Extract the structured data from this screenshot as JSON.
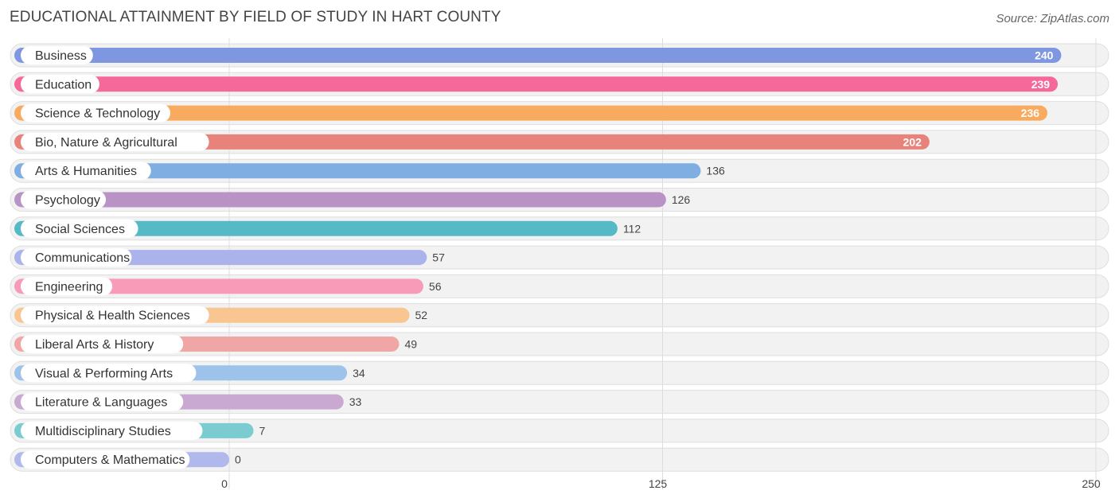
{
  "chart_data": {
    "type": "bar",
    "orientation": "horizontal",
    "title": "EDUCATIONAL ATTAINMENT BY FIELD OF STUDY IN HART COUNTY",
    "source": "Source: ZipAtlas.com",
    "categories": [
      "Business",
      "Education",
      "Science & Technology",
      "Bio, Nature & Agricultural",
      "Arts & Humanities",
      "Psychology",
      "Social Sciences",
      "Communications",
      "Engineering",
      "Physical & Health Sciences",
      "Liberal Arts & History",
      "Visual & Performing Arts",
      "Literature & Languages",
      "Multidisciplinary Studies",
      "Computers & Mathematics"
    ],
    "values": [
      240,
      239,
      236,
      202,
      136,
      126,
      112,
      57,
      56,
      52,
      49,
      34,
      33,
      7,
      0
    ],
    "colors": [
      "#7f96e0",
      "#f4699a",
      "#f8ab5e",
      "#e8837b",
      "#7faee2",
      "#b993c6",
      "#56b9c6",
      "#aab3ea",
      "#f79bb8",
      "#f9c590",
      "#efa6a4",
      "#9ec3ea",
      "#c9a9d2",
      "#7accd0",
      "#b1b9ec"
    ],
    "xlim": [
      0,
      250
    ],
    "xticks": [
      0,
      125,
      250
    ],
    "xlabel": "",
    "ylabel": "",
    "grid": true,
    "legend": "none"
  }
}
